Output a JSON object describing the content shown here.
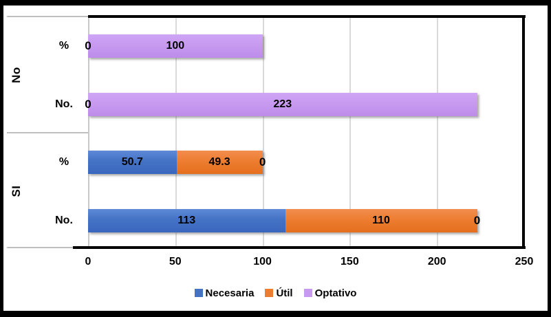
{
  "chart_data": {
    "type": "bar",
    "orientation": "horizontal",
    "stacked": true,
    "series": [
      {
        "name": "Necesaria",
        "color": "#4472C4",
        "gradient": [
          "#5E8AD8",
          "#3A67BE"
        ]
      },
      {
        "name": "Útil",
        "color": "#ED7D31",
        "gradient": [
          "#F28D4E",
          "#E46F1D"
        ]
      },
      {
        "name": "Optativo",
        "color": "#C79AF0",
        "gradient": [
          "#CFA5F6",
          "#BD8CEA"
        ]
      }
    ],
    "rows": [
      {
        "group": "No",
        "measure": "%",
        "values": {
          "Necesaria": 0,
          "Útil": 0,
          "Optativo": 100
        }
      },
      {
        "group": "No",
        "measure": "No.",
        "values": {
          "Necesaria": 0,
          "Útil": 0,
          "Optativo": 223
        }
      },
      {
        "group": "SI",
        "measure": "%",
        "values": {
          "Necesaria": 50.7,
          "Útil": 49.3,
          "Optativo": 0
        }
      },
      {
        "group": "SI",
        "measure": "No.",
        "values": {
          "Necesaria": 113,
          "Útil": 110,
          "Optativo": 0
        }
      }
    ],
    "xlim": [
      0,
      250
    ],
    "xticks": [
      0,
      50,
      100,
      150,
      200,
      250
    ],
    "value_labels_shown": true,
    "grid": true,
    "grid_color": "#D9D9D9",
    "separator_color": "#BFBFBF",
    "axis_color": "#000000",
    "frame_color": "#000000",
    "legend_position": "bottom"
  }
}
